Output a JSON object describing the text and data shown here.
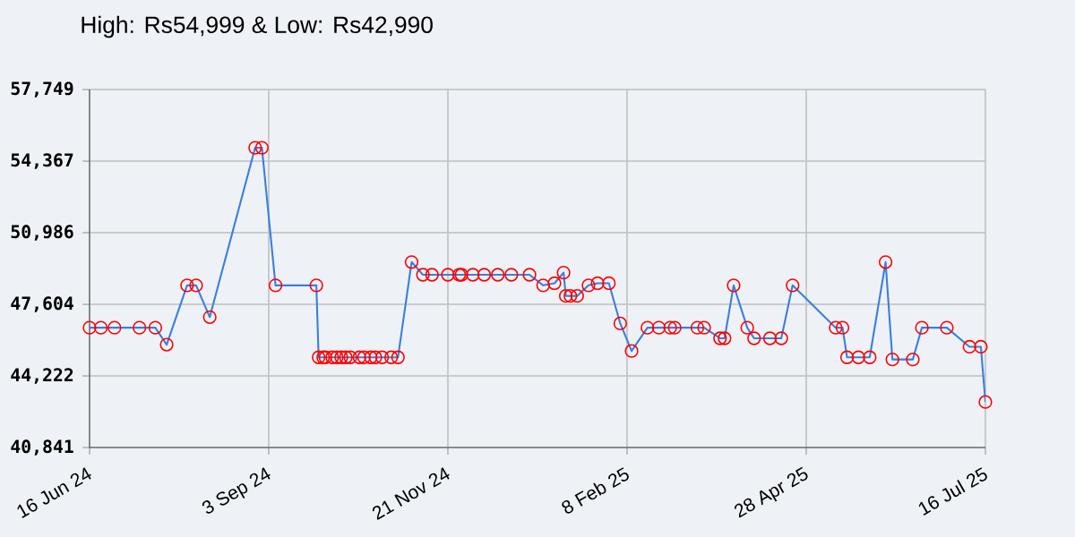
{
  "chart_data": {
    "type": "line",
    "title": "High: Rs54,999 & Low: Rs42,990",
    "x": [
      "2024-06-16",
      "2024-06-21",
      "2024-06-27",
      "2024-07-08",
      "2024-07-15",
      "2024-07-20",
      "2024-07-29",
      "2024-08-02",
      "2024-08-08",
      "2024-08-28",
      "2024-08-31",
      "2024-09-06",
      "2024-09-24",
      "2024-09-25",
      "2024-09-27",
      "2024-09-28",
      "2024-10-01",
      "2024-10-03",
      "2024-10-05",
      "2024-10-07",
      "2024-10-09",
      "2024-10-13",
      "2024-10-15",
      "2024-10-18",
      "2024-10-20",
      "2024-10-23",
      "2024-10-27",
      "2024-10-30",
      "2024-11-05",
      "2024-11-10",
      "2024-11-14",
      "2024-11-21",
      "2024-11-26",
      "2024-11-27",
      "2024-12-02",
      "2024-12-07",
      "2024-12-13",
      "2024-12-19",
      "2024-12-27",
      "2025-01-02",
      "2025-01-07",
      "2025-01-11",
      "2025-01-12",
      "2025-01-14",
      "2025-01-17",
      "2025-01-22",
      "2025-01-26",
      "2025-01-31",
      "2025-02-05",
      "2025-02-10",
      "2025-02-17",
      "2025-02-22",
      "2025-02-27",
      "2025-03-01",
      "2025-03-11",
      "2025-03-14",
      "2025-03-21",
      "2025-03-23",
      "2025-03-27",
      "2025-04-02",
      "2025-04-05",
      "2025-04-12",
      "2025-04-17",
      "2025-04-22",
      "2025-05-11",
      "2025-05-14",
      "2025-05-16",
      "2025-05-21",
      "2025-05-26",
      "2025-06-02",
      "2025-06-05",
      "2025-06-14",
      "2025-06-18",
      "2025-06-29",
      "2025-07-09",
      "2025-07-14",
      "2025-07-16"
    ],
    "series": [
      {
        "color": "#3b7fe0",
        "values": [
          46500,
          46500,
          46500,
          46500,
          46500,
          45700,
          48500,
          48500,
          47000,
          54999,
          54999,
          48500,
          48500,
          45100,
          45100,
          45100,
          45100,
          45100,
          45100,
          45100,
          45100,
          45100,
          45100,
          45100,
          45100,
          45100,
          45100,
          45100,
          49600,
          49000,
          49000,
          49000,
          49000,
          49000,
          49000,
          49000,
          49000,
          49000,
          49000,
          48500,
          48600,
          49100,
          48000,
          48000,
          48000,
          48500,
          48600,
          48600,
          46700,
          45400,
          46500,
          46500,
          46500,
          46500,
          46500,
          46500,
          46000,
          46000,
          48500,
          46500,
          46000,
          46000,
          46000,
          48500,
          46500,
          46500,
          45100,
          45100,
          45100,
          49600,
          45000,
          45000,
          46500,
          46500,
          45600,
          45600,
          42990
        ]
      }
    ],
    "xlim": [
      "2024-06-16",
      "2025-07-16"
    ],
    "xticks": [
      {
        "value": "2024-06-16",
        "label": "16 Jun 24"
      },
      {
        "value": "2024-09-03",
        "label": "3 Sep 24"
      },
      {
        "value": "2024-11-21",
        "label": "21 Nov 24"
      },
      {
        "value": "2025-02-08",
        "label": "8 Feb 25"
      },
      {
        "value": "2025-04-28",
        "label": "28 Apr 25"
      },
      {
        "value": "2025-07-16",
        "label": "16 Jul 25"
      }
    ],
    "ylim": [
      40841,
      57749
    ],
    "yticks": [
      {
        "value": 40841,
        "label": "40,841"
      },
      {
        "value": 44222,
        "label": "44,222"
      },
      {
        "value": 47604,
        "label": "47,604"
      },
      {
        "value": 50986,
        "label": "50,986"
      },
      {
        "value": 54367,
        "label": "54,367"
      },
      {
        "value": 57749,
        "label": "57,749"
      }
    ],
    "grid": true,
    "marker": "circle",
    "line_style": "solid"
  }
}
